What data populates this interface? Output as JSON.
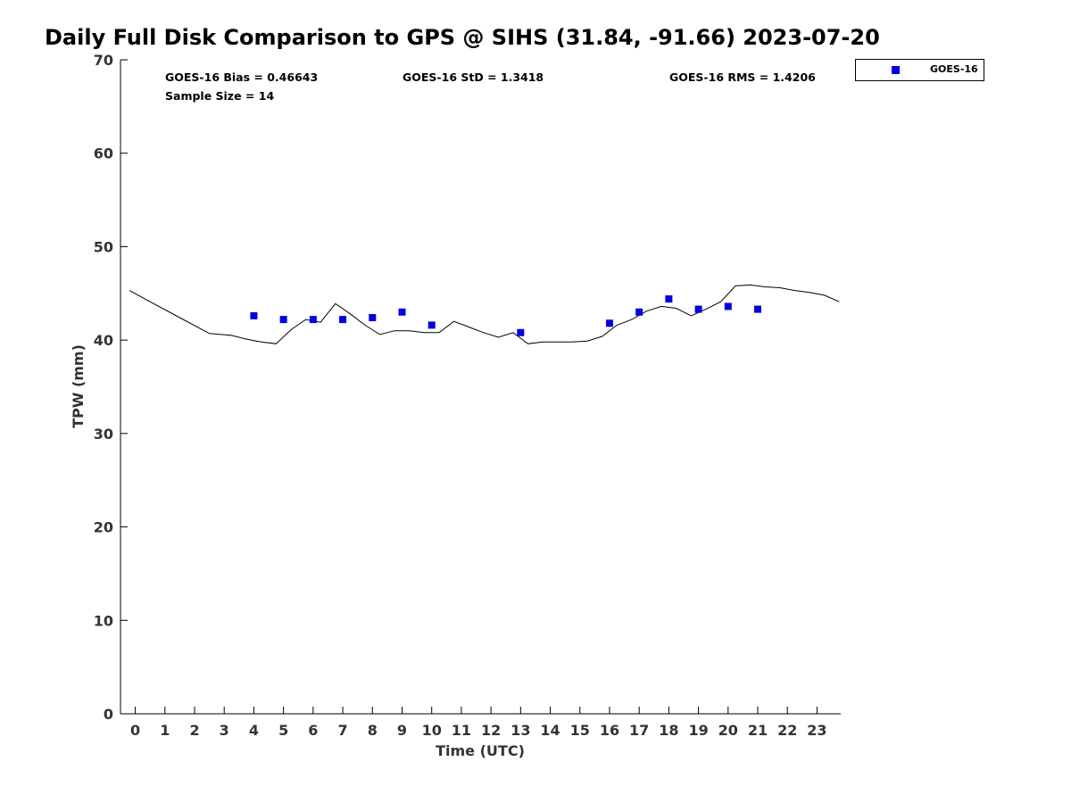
{
  "chart_data": {
    "type": "scatter",
    "title": "Daily Full Disk Comparison to GPS @ SIHS (31.84, -91.66) 2023-07-20",
    "xlabel": "Time (UTC)",
    "ylabel": "TPW (mm)",
    "xlim": [
      -0.5,
      23.8
    ],
    "ylim": [
      0,
      70
    ],
    "x_ticks": [
      0,
      1,
      2,
      3,
      4,
      5,
      6,
      7,
      8,
      9,
      10,
      11,
      12,
      13,
      14,
      15,
      16,
      17,
      18,
      19,
      20,
      21,
      22,
      23
    ],
    "y_ticks": [
      0,
      10,
      20,
      30,
      40,
      50,
      60,
      70
    ],
    "grid": false,
    "legend_position": "top-right",
    "stats": {
      "bias": "GOES-16 Bias = 0.46643",
      "std": "GOES-16 StD = 1.3418",
      "rms": "GOES-16 RMS = 1.4206",
      "sample": "Sample Size = 14"
    },
    "series": [
      {
        "name": "GOES-16",
        "kind": "scatter",
        "color": "#0000dd",
        "x": [
          4,
          5,
          6,
          7,
          8,
          9,
          10,
          13,
          16,
          17,
          18,
          19,
          20,
          21
        ],
        "y": [
          42.6,
          42.2,
          42.2,
          42.2,
          42.4,
          43.0,
          41.6,
          40.8,
          41.8,
          43.0,
          44.4,
          43.3,
          43.6,
          43.3
        ]
      },
      {
        "kind": "line",
        "color": "#000000",
        "x": [
          -0.2,
          0.5,
          1.5,
          2.5,
          3.25,
          3.75,
          4.25,
          4.75,
          5.25,
          5.75,
          6.25,
          6.75,
          7.25,
          7.75,
          8.25,
          8.75,
          9.25,
          9.75,
          10.25,
          10.75,
          11.25,
          11.75,
          12.25,
          12.75,
          13.25,
          13.75,
          14.25,
          14.75,
          15.25,
          15.75,
          16.25,
          16.75,
          17.25,
          17.75,
          18.25,
          18.75,
          19.25,
          19.75,
          20.25,
          20.75,
          21.25,
          21.75,
          22.25,
          22.75,
          23.25,
          23.75
        ],
        "y": [
          45.3,
          44.1,
          42.4,
          40.7,
          40.5,
          40.1,
          39.8,
          39.6,
          41.1,
          42.2,
          41.9,
          43.9,
          42.8,
          41.6,
          40.6,
          41.0,
          41.0,
          40.8,
          40.8,
          42.0,
          41.4,
          40.8,
          40.3,
          40.8,
          39.6,
          39.8,
          39.8,
          39.8,
          39.9,
          40.4,
          41.6,
          42.2,
          43.1,
          43.6,
          43.4,
          42.6,
          43.3,
          44.1,
          45.8,
          45.9,
          45.7,
          45.6,
          45.3,
          45.1,
          44.8,
          44.1
        ]
      }
    ]
  }
}
